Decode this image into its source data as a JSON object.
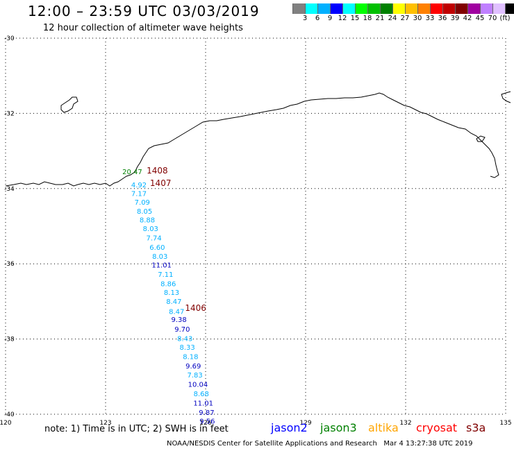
{
  "header": {
    "title": "12:00 – 23:59 UTC 03/03/2019",
    "subtitle": "12 hour collection of altimeter wave heights"
  },
  "color_scale": {
    "unit": "(ft)",
    "colors": [
      "#808080",
      "#00ffff",
      "#00b0ff",
      "#0000ff",
      "#00ffff",
      "#00ff00",
      "#00c000",
      "#008000",
      "#ffff00",
      "#ffc000",
      "#ff8000",
      "#ff0000",
      "#c00000",
      "#800000",
      "#a000a0",
      "#c080ff",
      "#e0c0ff",
      "#000000"
    ],
    "labels": [
      "3",
      "6",
      "9",
      "12",
      "15",
      "18",
      "21",
      "24",
      "27",
      "30",
      "33",
      "36",
      "39",
      "42",
      "45",
      "70"
    ]
  },
  "axes": {
    "lat_labels": [
      "-30",
      "-32",
      "-34",
      "-36",
      "-38",
      "-40"
    ],
    "lon_labels": [
      "120",
      "123",
      "126",
      "129",
      "132",
      "135"
    ]
  },
  "observations": [
    {
      "lon": 123.8,
      "lat": -33.62,
      "value": "20.47",
      "color": "#008000"
    },
    {
      "lon": 124.0,
      "lat": -33.97,
      "value": "4.92",
      "color": "#00b0ff"
    },
    {
      "lon": 124.0,
      "lat": -34.2,
      "value": "7.17",
      "color": "#00b0ff"
    },
    {
      "lon": 124.1,
      "lat": -34.43,
      "value": "7.09",
      "color": "#00b0ff"
    },
    {
      "lon": 124.17,
      "lat": -34.67,
      "value": "8.05",
      "color": "#00b0ff"
    },
    {
      "lon": 124.25,
      "lat": -34.9,
      "value": "8.88",
      "color": "#00b0ff"
    },
    {
      "lon": 124.35,
      "lat": -35.13,
      "value": "8.03",
      "color": "#00b0ff"
    },
    {
      "lon": 124.45,
      "lat": -35.38,
      "value": "7.74",
      "color": "#00b0ff"
    },
    {
      "lon": 124.55,
      "lat": -35.63,
      "value": "6.60",
      "color": "#00b0ff"
    },
    {
      "lon": 124.63,
      "lat": -35.87,
      "value": "8.03",
      "color": "#00b0ff"
    },
    {
      "lon": 124.68,
      "lat": -36.1,
      "value": "11.01",
      "color": "#0000c0"
    },
    {
      "lon": 124.8,
      "lat": -36.35,
      "value": "7.11",
      "color": "#00b0ff"
    },
    {
      "lon": 124.88,
      "lat": -36.6,
      "value": "8.86",
      "color": "#00b0ff"
    },
    {
      "lon": 124.98,
      "lat": -36.83,
      "value": "8.13",
      "color": "#00b0ff"
    },
    {
      "lon": 125.05,
      "lat": -37.07,
      "value": "8.47",
      "color": "#00b0ff"
    },
    {
      "lon": 125.13,
      "lat": -37.33,
      "value": "8.47",
      "color": "#00b0ff"
    },
    {
      "lon": 125.2,
      "lat": -37.55,
      "value": "9.38",
      "color": "#0000c0"
    },
    {
      "lon": 125.3,
      "lat": -37.8,
      "value": "9.70",
      "color": "#0000c0"
    },
    {
      "lon": 125.38,
      "lat": -38.05,
      "value": "8.43",
      "color": "#00b0ff"
    },
    {
      "lon": 125.45,
      "lat": -38.28,
      "value": "8.33",
      "color": "#00b0ff"
    },
    {
      "lon": 125.55,
      "lat": -38.53,
      "value": "8.18",
      "color": "#00b0ff"
    },
    {
      "lon": 125.63,
      "lat": -38.78,
      "value": "9.69",
      "color": "#0000c0"
    },
    {
      "lon": 125.68,
      "lat": -39.02,
      "value": "7.83",
      "color": "#00b0ff"
    },
    {
      "lon": 125.77,
      "lat": -39.27,
      "value": "10.04",
      "color": "#0000c0"
    },
    {
      "lon": 125.87,
      "lat": -39.52,
      "value": "8.68",
      "color": "#00b0ff"
    },
    {
      "lon": 125.93,
      "lat": -39.77,
      "value": "11.01",
      "color": "#0000c0"
    },
    {
      "lon": 126.03,
      "lat": -40.02,
      "value": "9.87",
      "color": "#0000c0"
    },
    {
      "lon": 126.05,
      "lat": -40.25,
      "value": "9.56",
      "color": "#0000c0"
    }
  ],
  "track_labels": [
    {
      "lon": 124.55,
      "lat": -33.6,
      "text": "1408"
    },
    {
      "lon": 124.65,
      "lat": -33.93,
      "text": "1407"
    },
    {
      "lon": 125.7,
      "lat": -37.25,
      "text": "1406"
    }
  ],
  "footer": {
    "note": "note:  1) Time is in UTC;  2) SWH is in feet",
    "satellites": [
      {
        "name": "jason2",
        "color": "#0000ff"
      },
      {
        "name": "jason3",
        "color": "#008000"
      },
      {
        "name": "altika",
        "color": "#ffa500"
      },
      {
        "name": "cryosat",
        "color": "#ff0000"
      },
      {
        "name": "s3a",
        "color": "#800000"
      }
    ],
    "credit": "NOAA/NESDIS Center for Satellite Applications and Research",
    "timestamp": "Mar  4 13:27:38 UTC 2019"
  }
}
